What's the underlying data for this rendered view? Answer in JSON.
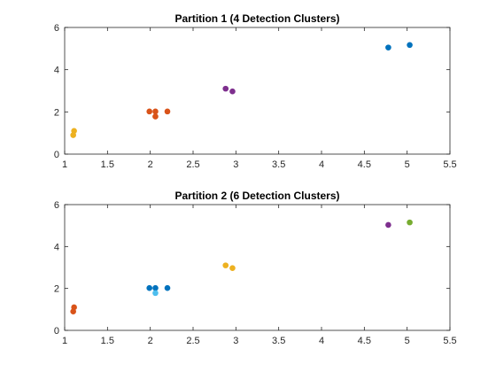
{
  "chart_data": [
    {
      "type": "scatter",
      "title": "Partition 1 (4 Detection Clusters)",
      "xlabel": "",
      "ylabel": "",
      "xlim": [
        1,
        5.5
      ],
      "ylim": [
        0,
        6
      ],
      "xticks": [
        "1",
        "1.5",
        "2",
        "2.5",
        "3",
        "3.5",
        "4",
        "4.5",
        "5",
        "5.5"
      ],
      "yticks": [
        "0",
        "2",
        "4",
        "6"
      ],
      "grid": false,
      "series": [
        {
          "color": "#EDB120",
          "points": [
            [
              1.1,
              0.9
            ],
            [
              1.11,
              1.1
            ]
          ]
        },
        {
          "color": "#D95319",
          "points": [
            [
              1.99,
              2.02
            ],
            [
              2.06,
              2.02
            ],
            [
              2.06,
              1.78
            ],
            [
              2.2,
              2.02
            ]
          ]
        },
        {
          "color": "#7E2F8E",
          "points": [
            [
              2.88,
              3.1
            ],
            [
              2.96,
              2.97
            ]
          ]
        },
        {
          "color": "#0072BD",
          "points": [
            [
              4.78,
              5.05
            ],
            [
              5.03,
              5.17
            ]
          ]
        }
      ]
    },
    {
      "type": "scatter",
      "title": "Partition 2 (6 Detection Clusters)",
      "xlabel": "",
      "ylabel": "",
      "xlim": [
        1,
        5.5
      ],
      "ylim": [
        0,
        6
      ],
      "xticks": [
        "1",
        "1.5",
        "2",
        "2.5",
        "3",
        "3.5",
        "4",
        "4.5",
        "5",
        "5.5"
      ],
      "yticks": [
        "0",
        "2",
        "4",
        "6"
      ],
      "grid": false,
      "series": [
        {
          "color": "#D95319",
          "points": [
            [
              1.1,
              0.9
            ],
            [
              1.11,
              1.1
            ]
          ]
        },
        {
          "color": "#0072BD",
          "points": [
            [
              1.99,
              2.02
            ],
            [
              2.06,
              2.02
            ],
            [
              2.2,
              2.02
            ]
          ]
        },
        {
          "color": "#4DBEEE",
          "points": [
            [
              2.06,
              1.78
            ]
          ]
        },
        {
          "color": "#EDB120",
          "points": [
            [
              2.88,
              3.1
            ],
            [
              2.96,
              2.97
            ]
          ]
        },
        {
          "color": "#7E2F8E",
          "points": [
            [
              4.78,
              5.03
            ]
          ]
        },
        {
          "color": "#77AC30",
          "points": [
            [
              5.03,
              5.15
            ]
          ]
        }
      ]
    }
  ]
}
